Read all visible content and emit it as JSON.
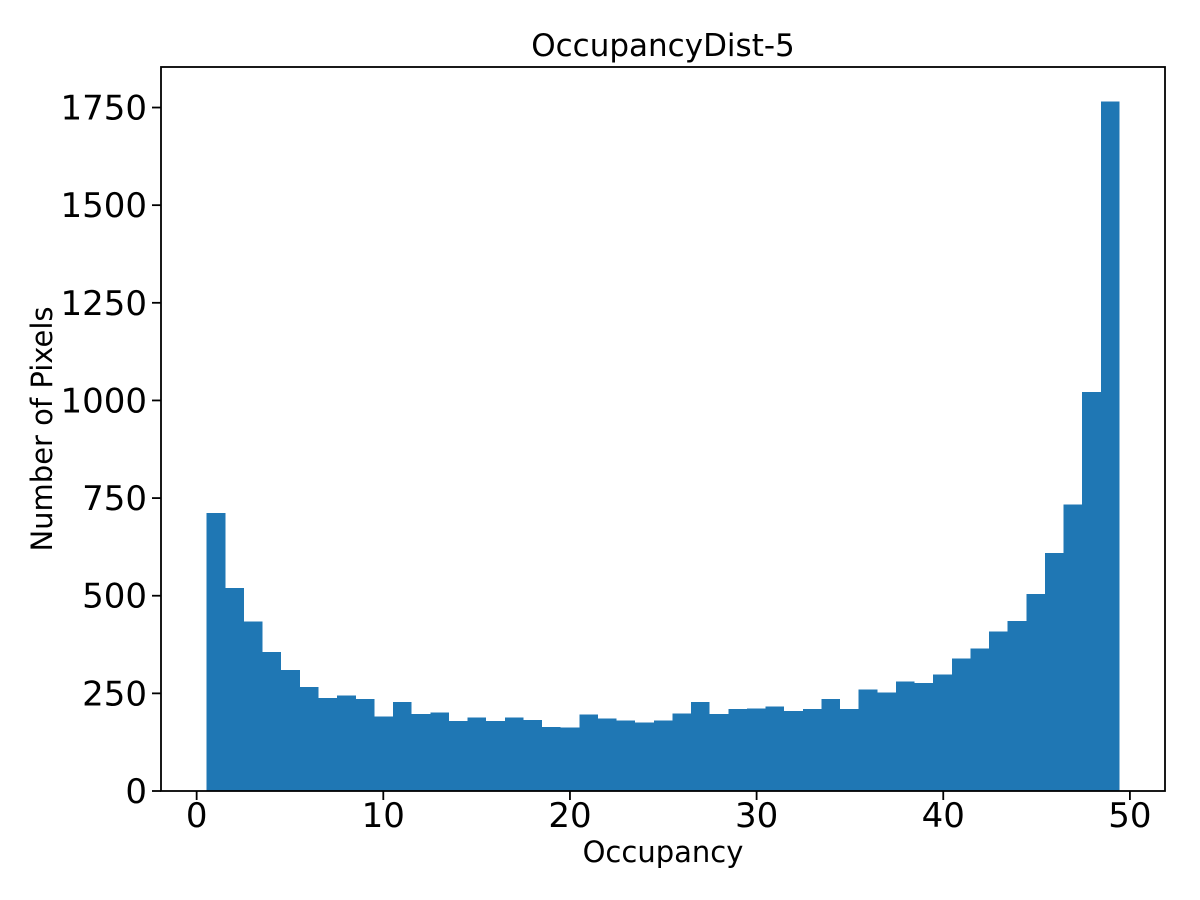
{
  "chart_data": {
    "type": "bar",
    "subtype": "histogram",
    "title": "OccupancyDist-5",
    "xlabel": "Occupancy",
    "ylabel": "Number of Pixels",
    "bar_color": "#1f77b4",
    "axis_color": "#000000",
    "bin_start": 0.54,
    "bin_width": 0.998,
    "values": [
      712,
      520,
      434,
      356,
      310,
      266,
      238,
      245,
      235,
      191,
      228,
      197,
      201,
      179,
      188,
      179,
      188,
      182,
      164,
      163,
      196,
      186,
      180,
      176,
      180,
      199,
      228,
      197,
      210,
      211,
      216,
      205,
      210,
      235,
      210,
      260,
      252,
      281,
      277,
      298,
      339,
      365,
      409,
      435,
      505,
      609,
      734,
      1022,
      1765
    ],
    "x_ticks": [
      0,
      10,
      20,
      30,
      40,
      50
    ],
    "x_tick_labels": [
      "0",
      "10",
      "20",
      "30",
      "40",
      "50"
    ],
    "y_ticks": [
      0,
      250,
      500,
      750,
      1000,
      1250,
      1500,
      1750
    ],
    "y_tick_labels": [
      "0",
      "250",
      "500",
      "750",
      "1000",
      "1250",
      "1500",
      "1750"
    ],
    "xlim": [
      -1.91,
      51.88
    ],
    "ylim": [
      0,
      1853
    ],
    "grid": false,
    "legend": null
  }
}
